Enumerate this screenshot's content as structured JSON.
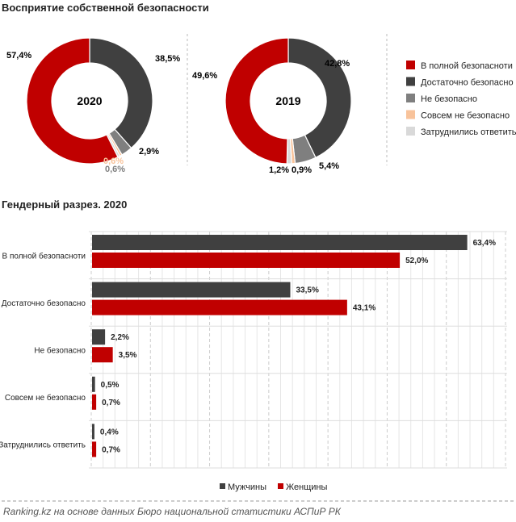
{
  "header": {
    "title": "Восприятие собственной безопасности",
    "subtitle": "Гендерный разрез. 2020"
  },
  "categories": [
    "В полной безопасноти",
    "Достаточно безопасно",
    "Не безопасно",
    "Совсем не безопасно",
    "Затруднились ответить"
  ],
  "colors": [
    "#c00000",
    "#404040",
    "#7f7f7f",
    "#f8c39b",
    "#d9d9d9"
  ],
  "chart_data": [
    {
      "type": "pie",
      "donut": true,
      "center_label": "2020",
      "categories": [
        "В полной безопасноти",
        "Достаточно безопасно",
        "Не безопасно",
        "Совсем не безопасно",
        "Затруднились ответить"
      ],
      "values": [
        57.4,
        38.5,
        2.9,
        0.6,
        0.6
      ],
      "labels": [
        "57,4%",
        "38,5%",
        "2,9%",
        "0,6%",
        "0,6%"
      ],
      "legend": "right"
    },
    {
      "type": "pie",
      "donut": true,
      "center_label": "2019",
      "categories": [
        "В полной безопасноти",
        "Достаточно безопасно",
        "Не безопасно",
        "Совсем не безопасно",
        "Затруднились ответить"
      ],
      "values": [
        49.6,
        42.8,
        5.4,
        0.9,
        1.2
      ],
      "labels": [
        "49,6%",
        "42,8%",
        "5,4%",
        "0,9%",
        "1,2%"
      ],
      "legend": "right"
    },
    {
      "type": "bar",
      "orientation": "horizontal",
      "title": "Гендерный разрез. 2020",
      "categories": [
        "В полной безопасноти",
        "Достаточно безопасно",
        "Не безопасно",
        "Совсем не безопасно",
        "Затруднились ответить"
      ],
      "series": [
        {
          "name": "Мужчины",
          "color": "#404040",
          "values": [
            63.4,
            33.5,
            2.2,
            0.5,
            0.4
          ],
          "labels": [
            "63,4%",
            "33,5%",
            "2,2%",
            "0,5%",
            "0,4%"
          ]
        },
        {
          "name": "Женщины",
          "color": "#c00000",
          "values": [
            52.0,
            43.1,
            3.5,
            0.7,
            0.7
          ],
          "labels": [
            "52,0%",
            "43,1%",
            "3,5%",
            "0,7%",
            "0,7%"
          ]
        }
      ],
      "xlim": [
        0,
        70
      ],
      "grid": true,
      "legend": "bottom"
    }
  ],
  "footer": {
    "source": "Ranking.kz на основе данных Бюро национальной статистики АСПиР РК"
  }
}
